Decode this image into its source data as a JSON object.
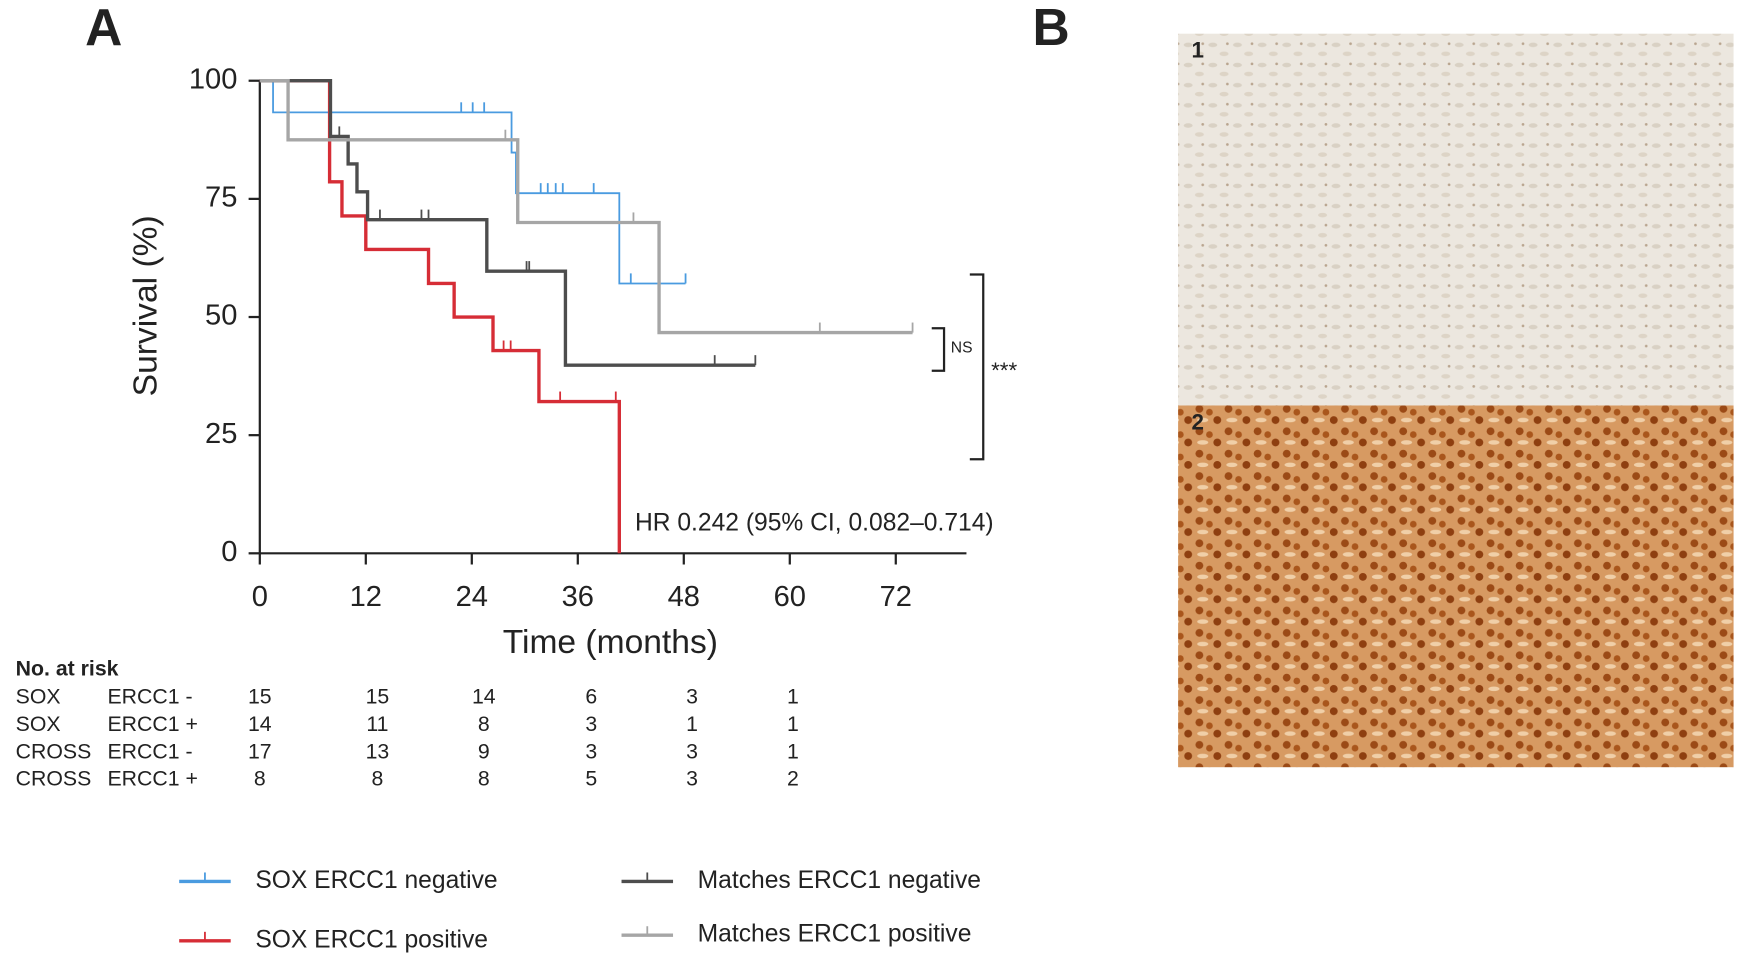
{
  "panels": {
    "a": "A",
    "b": "B"
  },
  "chart_data": {
    "type": "line",
    "y_label": "Survival  (%)",
    "x_label": "Time (months)",
    "xlim": [
      0,
      80
    ],
    "ylim": [
      0,
      100
    ],
    "xticks": [
      0,
      12,
      24,
      36,
      48,
      60,
      72
    ],
    "yticks": [
      0,
      25,
      50,
      75,
      100
    ],
    "annotations": {
      "hr": "HR 0.242 (95% CI, 0.082–0.714)",
      "ns": "NS",
      "sig": "***"
    },
    "series": [
      {
        "name": "SOX ERCC1 negative",
        "color": "#4a9be0",
        "width": 1.6,
        "x": [
          0,
          1.5,
          1.5,
          28.5,
          28.5,
          29,
          29,
          40.7,
          40.7,
          48.2
        ],
        "values": [
          100,
          100,
          93.3,
          93.3,
          84.8,
          84.8,
          76.2,
          76.2,
          57.1,
          57.1
        ],
        "censor_x": [
          22.8,
          24.1,
          25.4,
          31.8,
          32.6,
          33.5,
          34.3,
          37.8,
          42,
          48.2
        ],
        "censor_values": [
          93.3,
          93.3,
          93.3,
          76.2,
          76.2,
          76.2,
          76.2,
          76.2,
          57.1,
          57.1
        ]
      },
      {
        "name": "SOX ERCC1 positive",
        "color": "#d62d36",
        "width": 3,
        "x": [
          0,
          7.9,
          7.9,
          9.3,
          9.3,
          12,
          12,
          19.1,
          19.1,
          22,
          22,
          26.4,
          26.4,
          31.6,
          31.6,
          40.7,
          40.7
        ],
        "values": [
          100,
          100,
          78.6,
          78.6,
          71.4,
          71.4,
          64.3,
          64.3,
          57.1,
          57.1,
          50,
          50,
          42.9,
          42.9,
          32.1,
          32.1,
          0
        ],
        "censor_x": [
          27.6,
          28.4,
          34,
          40.3
        ],
        "censor_values": [
          42.9,
          42.9,
          32.1,
          32.1
        ]
      },
      {
        "name": "Matches ERCC1 negative",
        "color": "#4d4d4d",
        "width": 3,
        "x": [
          0,
          8,
          8,
          10,
          10,
          11,
          11,
          12.2,
          12.2,
          25.7,
          25.7,
          34.6,
          34.6,
          56.1
        ],
        "values": [
          100,
          100,
          88.2,
          88.2,
          82.4,
          82.4,
          76.5,
          76.5,
          70.6,
          70.6,
          59.7,
          59.7,
          39.8,
          39.8
        ],
        "censor_x": [
          9,
          13.6,
          18.3,
          19.1,
          30.2,
          30.5,
          51.5,
          56.1
        ],
        "censor_values": [
          88.2,
          70.6,
          70.6,
          70.6,
          59.7,
          59.7,
          39.8,
          39.8
        ]
      },
      {
        "name": "Matches ERCC1 positive",
        "color": "#a6a6a6",
        "width": 3,
        "x": [
          0,
          3.2,
          3.2,
          29.2,
          29.2,
          45.2,
          45.2,
          73.9
        ],
        "values": [
          100,
          100,
          87.5,
          87.5,
          70,
          70,
          46.7,
          46.7
        ],
        "censor_x": [
          27.8,
          42.3,
          63.4,
          73.9
        ],
        "censor_values": [
          87.5,
          70,
          46.7,
          46.7
        ]
      }
    ]
  },
  "risk_table": {
    "title": "No. at risk",
    "rows": [
      {
        "group": "SOX",
        "marker": "ERCC1 -",
        "counts": [
          "15",
          "15",
          "14",
          "6",
          "3",
          "1"
        ]
      },
      {
        "group": "SOX",
        "marker": "ERCC1 +",
        "counts": [
          "14",
          "11",
          "8",
          "3",
          "1",
          "1"
        ]
      },
      {
        "group": "CROSS",
        "marker": "ERCC1 -",
        "counts": [
          "17",
          "13",
          "9",
          "3",
          "3",
          "1"
        ]
      },
      {
        "group": "CROSS",
        "marker": "ERCC1 +",
        "counts": [
          "8",
          "8",
          "8",
          "5",
          "3",
          "2"
        ]
      }
    ]
  },
  "images": {
    "labels": [
      "1",
      "2"
    ]
  }
}
